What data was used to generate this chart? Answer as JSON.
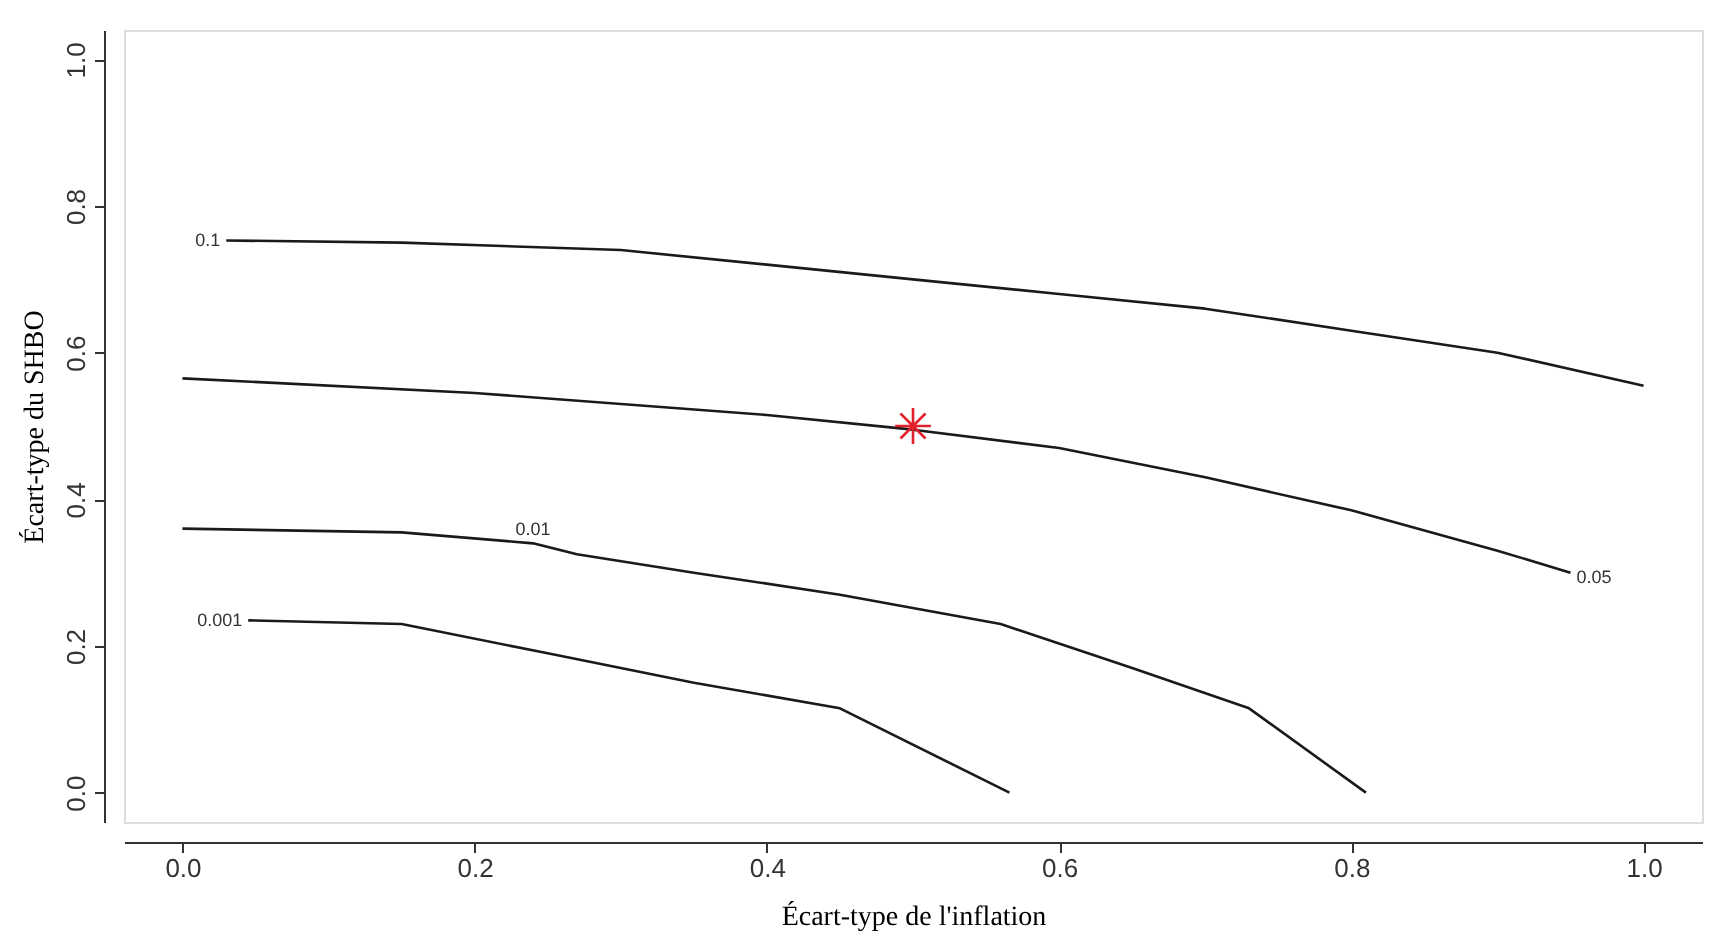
{
  "chart_data": {
    "type": "line",
    "xlabel": "Écart-type de l'inflation",
    "ylabel": "Écart-type du SHBO",
    "xlim": [
      -0.04,
      1.04
    ],
    "ylim": [
      -0.04,
      1.04
    ],
    "xticks": [
      {
        "value": 0,
        "label": "0.0"
      },
      0.2,
      0.4,
      0.6,
      0.8,
      {
        "value": 1,
        "label": "1.0"
      }
    ],
    "yticks": [
      {
        "value": 0,
        "label": "0.0"
      },
      0.2,
      0.4,
      0.6,
      0.8,
      {
        "value": 1,
        "label": "1.0"
      }
    ],
    "grid": false,
    "line_style": "solid",
    "series": [
      {
        "type": "line",
        "color": "#1a1a1a",
        "x": [
          0.03,
          0.15,
          0.3,
          0.4,
          0.5,
          0.6,
          0.7,
          0.8,
          0.9,
          1.0
        ],
        "values": [
          0.753,
          0.75,
          0.74,
          0.72,
          0.7,
          0.68,
          0.66,
          0.63,
          0.6,
          0.555
        ]
      },
      {
        "type": "line",
        "color": "#1a1a1a",
        "x": [
          0.0,
          0.2,
          0.4,
          0.5,
          0.6,
          0.7,
          0.8,
          0.9,
          0.95
        ],
        "values": [
          0.565,
          0.545,
          0.515,
          0.495,
          0.47,
          0.43,
          0.385,
          0.33,
          0.3
        ]
      },
      {
        "type": "line",
        "color": "#1a1a1a",
        "x": [
          0.0,
          0.15,
          0.24,
          0.27,
          0.35,
          0.45,
          0.56,
          0.65,
          0.73,
          0.81
        ],
        "values": [
          0.36,
          0.355,
          0.34,
          0.325,
          0.3,
          0.27,
          0.23,
          0.17,
          0.115,
          0.0
        ]
      },
      {
        "type": "line",
        "color": "#1a1a1a",
        "x": [
          0.045,
          0.15,
          0.25,
          0.35,
          0.45,
          0.566
        ],
        "values": [
          0.235,
          0.23,
          0.19,
          0.15,
          0.115,
          0.0
        ]
      },
      {
        "type": "scatter",
        "marker": "cross",
        "color": "#e0202a",
        "x": [
          0.5
        ],
        "values": [
          0.5
        ]
      }
    ],
    "annotations": [
      {
        "text": "0.1",
        "x": 0.03,
        "y": 0.753
      },
      {
        "text": "0.05",
        "x": 0.95,
        "y": 0.3
      },
      {
        "text": "0.01",
        "x": 0.24,
        "y": 0.34
      },
      {
        "text": "0.001",
        "x": 0.045,
        "y": 0.235
      }
    ]
  }
}
